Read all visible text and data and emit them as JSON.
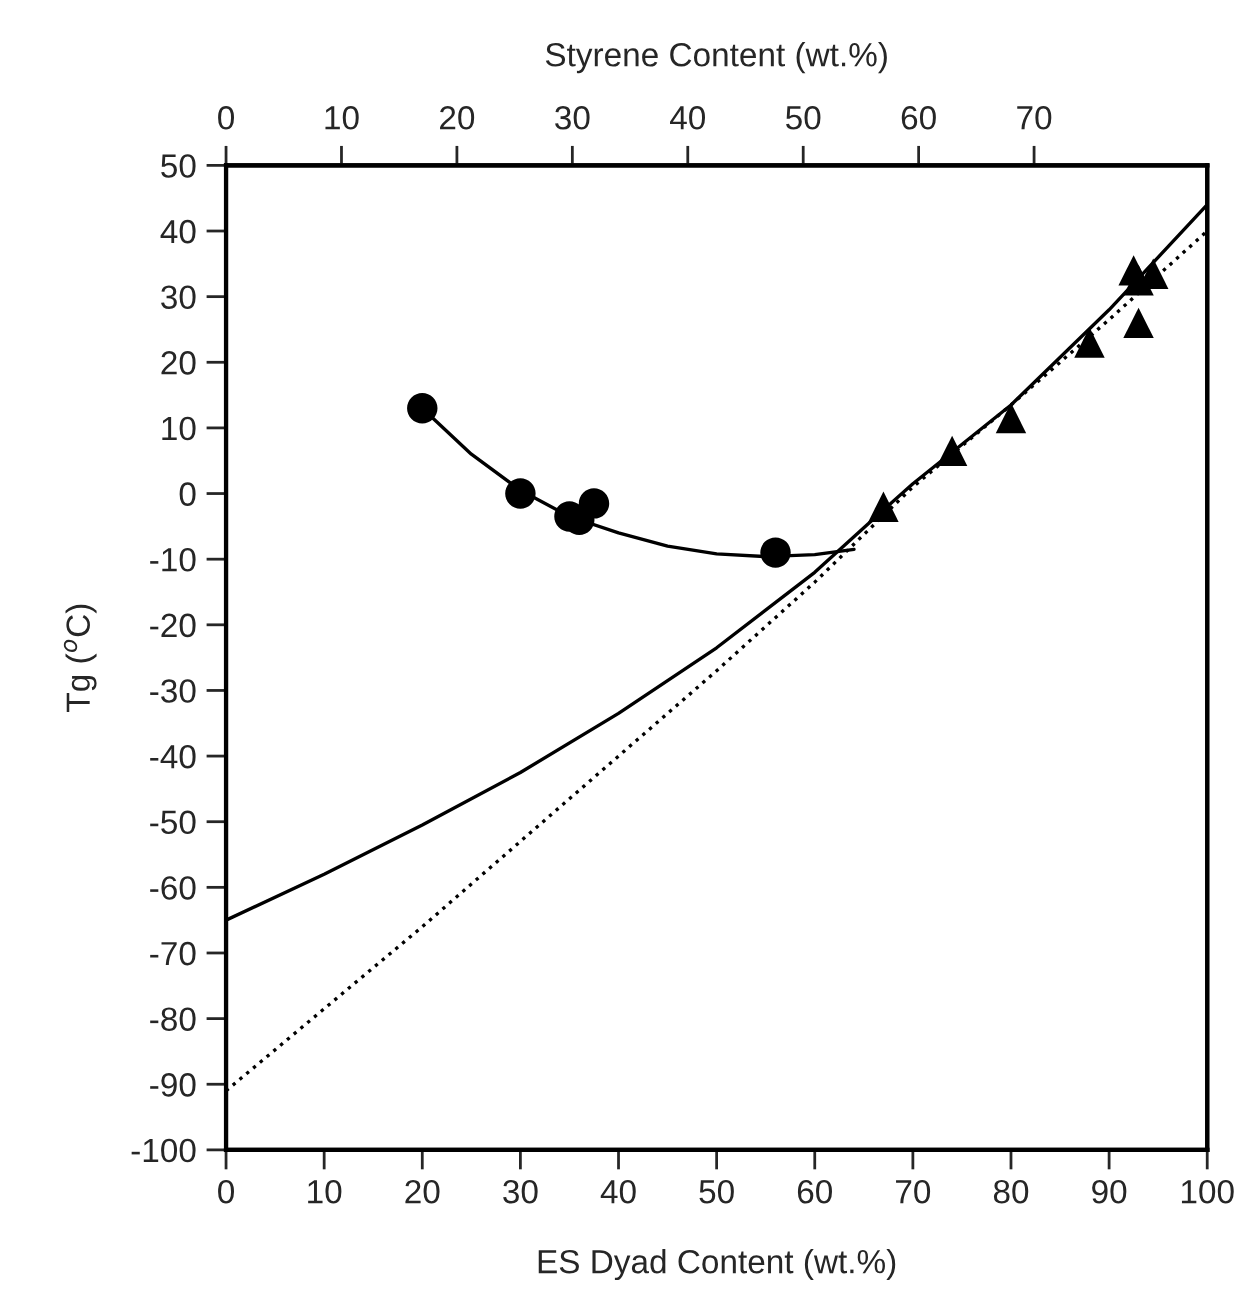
{
  "chart_data": {
    "type": "scatter",
    "xlabel": "ES Dyad Content (wt.%)",
    "ylabel": "Tg ($^{o}$C)",
    "x2label": "Styrene Content (wt.%)",
    "xlim": [
      0,
      100
    ],
    "xticks": [
      0,
      10,
      20,
      30,
      40,
      50,
      60,
      70,
      80,
      90,
      100
    ],
    "ylim": [
      -100,
      50
    ],
    "yticks": [
      -100,
      -90,
      -80,
      -70,
      -60,
      -50,
      -40,
      -30,
      -20,
      -10,
      0,
      10,
      20,
      30,
      40,
      50
    ],
    "x2lim": [
      0,
      85
    ],
    "x2ticks": [
      0,
      10,
      20,
      30,
      40,
      50,
      60,
      70
    ],
    "grid": false,
    "legend": false,
    "series": [
      {
        "marker": "circle",
        "color": "#000000",
        "x": [
          20,
          30,
          35,
          36,
          37.5,
          56
        ],
        "values": [
          13,
          0,
          -3.5,
          -4,
          -1.5,
          -9
        ]
      },
      {
        "marker": "triangle",
        "color": "#000000",
        "x": [
          67,
          74,
          80,
          88,
          92.5,
          93,
          93,
          94.5
        ],
        "values": [
          -2,
          6.5,
          11.5,
          23,
          34,
          32.5,
          26,
          33.5
        ]
      },
      {
        "type": "line",
        "line_style": "solid",
        "color": "#000000",
        "x": [
          20,
          25,
          30,
          35,
          40,
          45,
          50,
          55,
          60,
          64
        ],
        "values": [
          13,
          6,
          0.5,
          -3.5,
          -6,
          -8,
          -9.2,
          -9.6,
          -9.3,
          -8.5
        ]
      },
      {
        "type": "line",
        "line_style": "solid",
        "color": "#000000",
        "x": [
          0,
          10,
          20,
          30,
          40,
          50,
          60,
          67,
          70,
          80,
          90,
          100
        ],
        "values": [
          -65,
          -58,
          -50.5,
          -42.5,
          -33.5,
          -23.5,
          -12,
          -2.5,
          1.5,
          13.5,
          28,
          44
        ]
      },
      {
        "type": "line",
        "line_style": "dotted",
        "color": "#000000",
        "x": [
          0,
          10,
          20,
          30,
          40,
          50,
          60,
          70,
          80,
          90,
          100
        ],
        "values": [
          -91,
          -78.5,
          -66,
          -53,
          -40,
          -27,
          -13.5,
          1,
          13.5,
          26.5,
          40
        ]
      }
    ]
  }
}
